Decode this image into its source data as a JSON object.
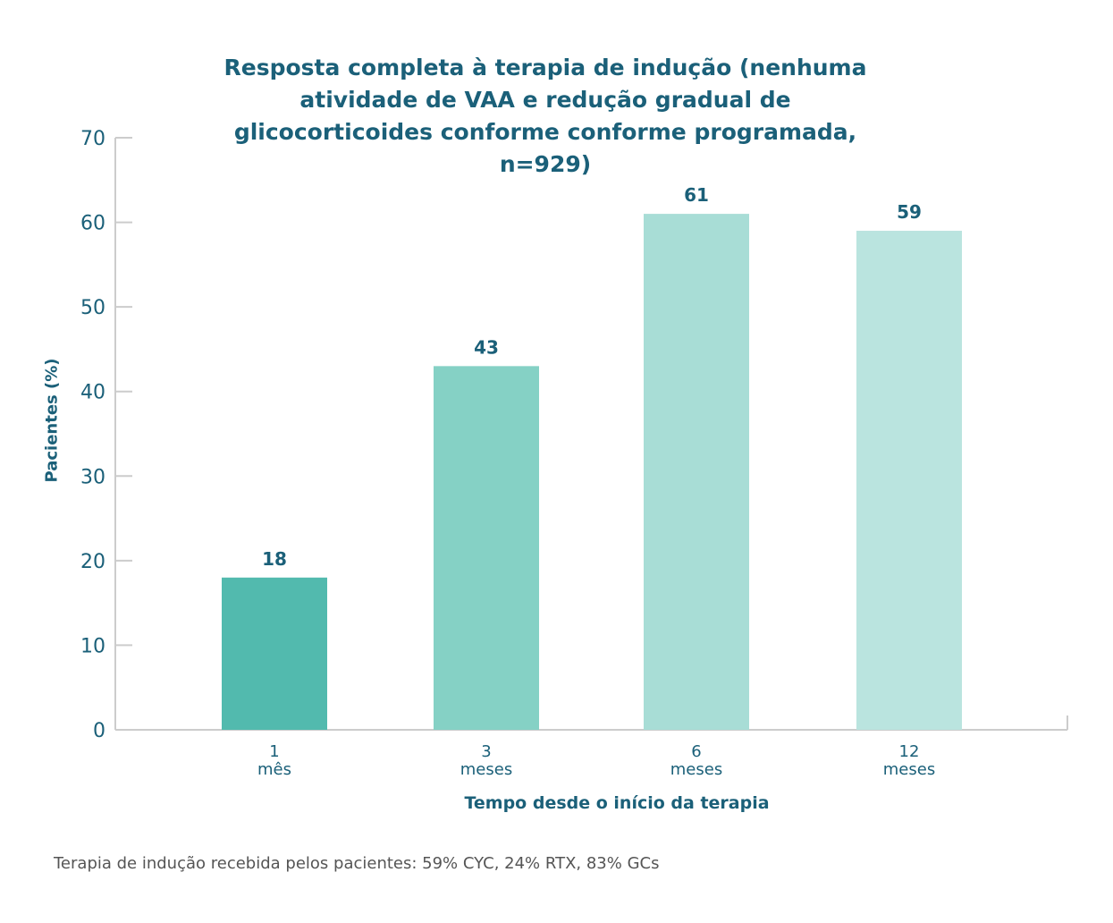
{
  "chart_data": {
    "type": "bar",
    "title": "Resposta completa à terapia de indução (nenhuma atividade de VAA e redução gradual de glicocorticoides conforme conforme programada, n=929)",
    "categories": [
      [
        "1",
        "mês"
      ],
      [
        "3",
        "meses"
      ],
      [
        "6",
        "meses"
      ],
      [
        "12",
        "meses"
      ]
    ],
    "values": [
      18,
      43,
      61,
      59
    ],
    "data_labels": [
      "18",
      "43",
      "61",
      "59"
    ],
    "colors": [
      "#52baae",
      "#85d1c5",
      "#a8ddd6",
      "#bae4df"
    ],
    "xlabel": "Tempo desde o início da terapia",
    "ylabel": "Pacientes (%)",
    "ylim": [
      0,
      70
    ],
    "yticks": [
      0,
      10,
      20,
      30,
      40,
      50,
      60,
      70
    ],
    "grid": false
  },
  "footnote": "Terapia de indução recebida pelos pacientes: 59% CYC, 24% RTX, 83% GCs",
  "text_color": "#1b6079"
}
